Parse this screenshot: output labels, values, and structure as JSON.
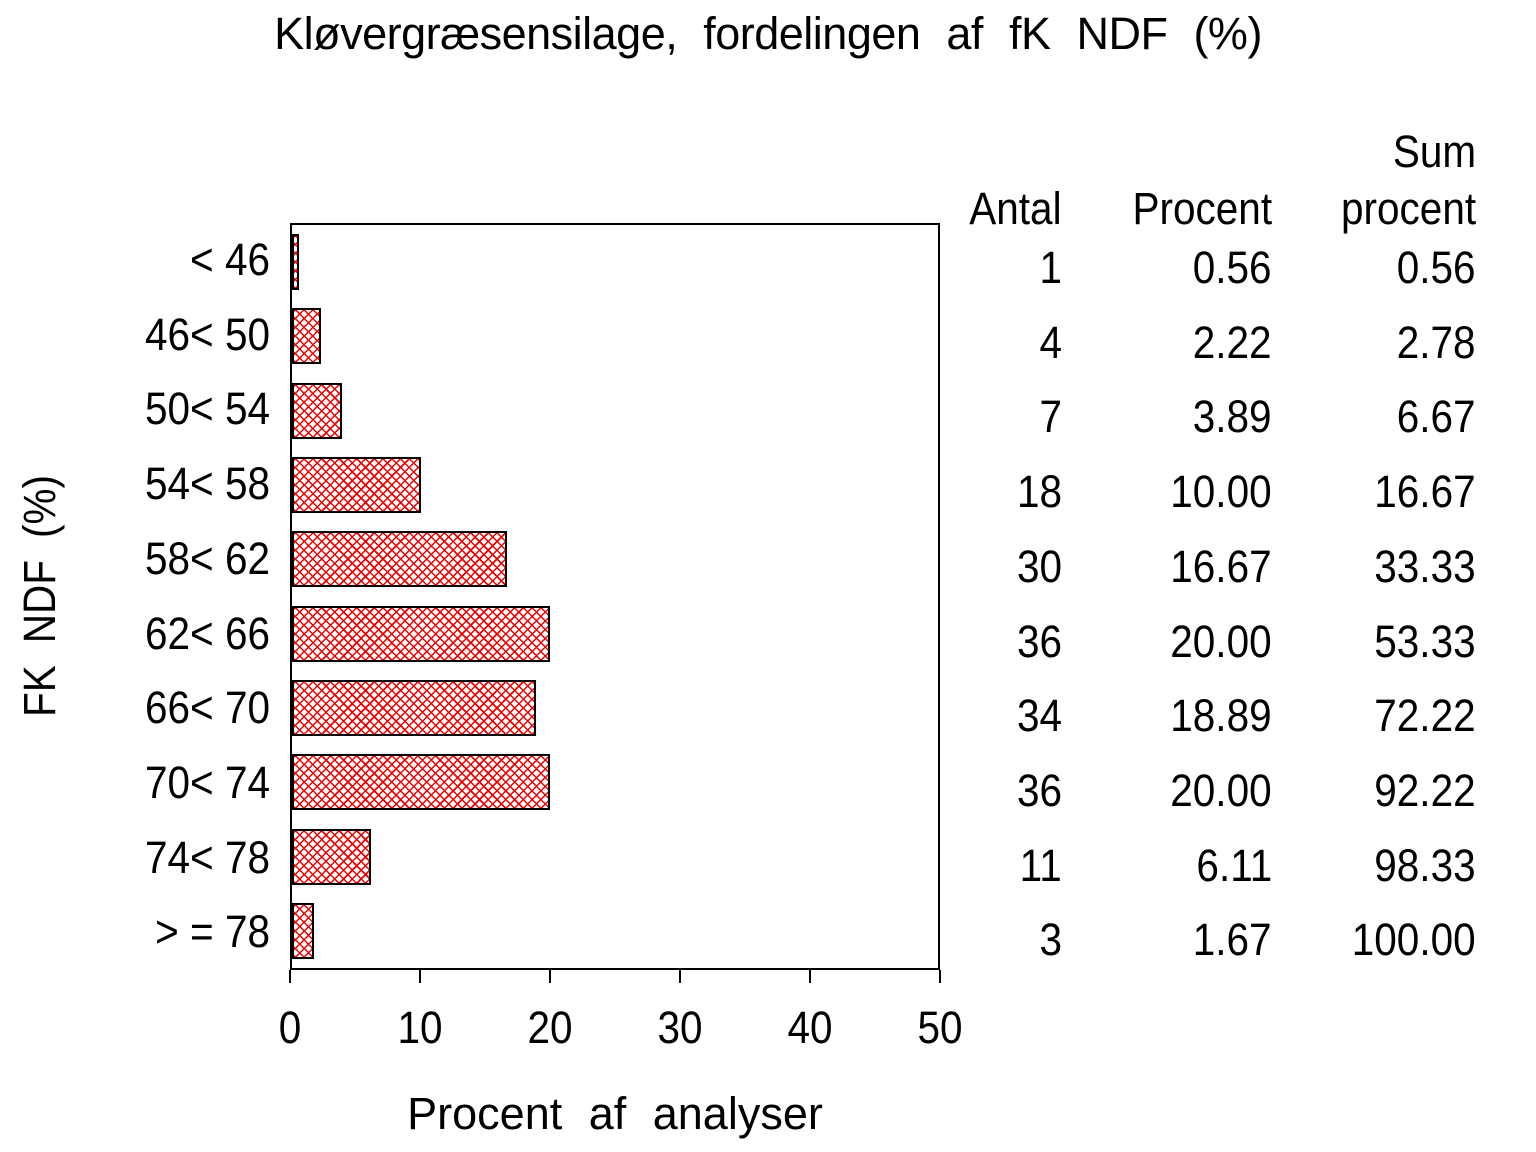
{
  "title": "Kløvergræsensilage, fordelingen af fK NDF (%)",
  "xlabel": "Procent af analyser",
  "ylabel": "FK NDF (%)",
  "colors": {
    "hatch_red": "#f20000",
    "bar_border": "#000000",
    "axis_frame": "#000000",
    "text": "#000000",
    "background": "#ffffff"
  },
  "x_ticks": [
    0,
    10,
    20,
    30,
    40,
    50
  ],
  "table": {
    "headers": [
      "Antal",
      "Procent",
      "Sum\nprocent"
    ],
    "rows": [
      [
        "1",
        "0.56",
        "0.56"
      ],
      [
        "4",
        "2.22",
        "2.78"
      ],
      [
        "7",
        "3.89",
        "6.67"
      ],
      [
        "18",
        "10.00",
        "16.67"
      ],
      [
        "30",
        "16.67",
        "33.33"
      ],
      [
        "36",
        "20.00",
        "53.33"
      ],
      [
        "34",
        "18.89",
        "72.22"
      ],
      [
        "36",
        "20.00",
        "92.22"
      ],
      [
        "11",
        "6.11",
        "98.33"
      ],
      [
        "3",
        "1.67",
        "100.00"
      ]
    ]
  },
  "chart_data": {
    "type": "bar",
    "orientation": "horizontal",
    "title": "Kløvergræsensilage, fordelingen af fK NDF (%)",
    "xlabel": "Procent af analyser",
    "ylabel": "FK NDF (%)",
    "categories": [
      "< 46",
      "46< 50",
      "50< 54",
      "54< 58",
      "58< 62",
      "62< 66",
      "66< 70",
      "70< 74",
      "74< 78",
      "> = 78"
    ],
    "values": [
      0.56,
      2.22,
      3.89,
      10.0,
      16.67,
      20.0,
      18.89,
      20.0,
      6.11,
      1.67
    ],
    "counts": [
      1,
      4,
      7,
      18,
      30,
      36,
      34,
      36,
      11,
      3
    ],
    "cumulative_percent": [
      0.56,
      2.78,
      6.67,
      16.67,
      33.33,
      53.33,
      72.22,
      92.22,
      98.33,
      100.0
    ],
    "xlim": [
      0,
      50
    ],
    "grid": false,
    "legend": "none",
    "bar_fill": "red diagonal crosshatch on white",
    "bar_border": "black"
  }
}
